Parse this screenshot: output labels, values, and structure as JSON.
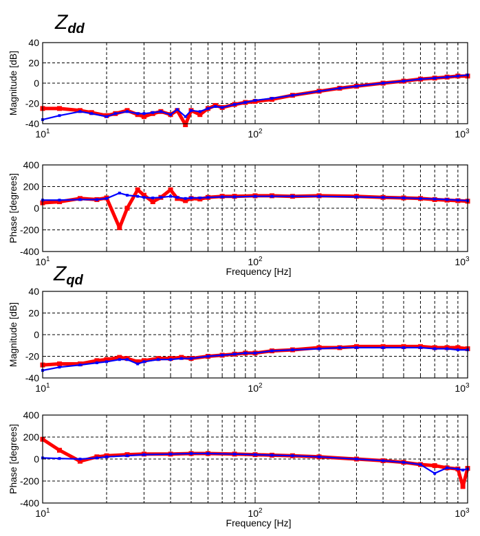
{
  "figure": {
    "title_dd": {
      "main": "Z",
      "sub": "dd"
    },
    "title_qd": {
      "main": "Z",
      "sub": "qd"
    }
  },
  "colors": {
    "series_red": "#ff0000",
    "series_blue": "#0000ff",
    "grid": "#000000",
    "axes_bg": "#ffffff"
  },
  "chart_data": [
    {
      "type": "line",
      "title": "",
      "xlabel": "",
      "ylabel": "Magnitude [dB]",
      "xscale": "log",
      "xlim": [
        10,
        1000
      ],
      "ylim": [
        -40,
        40
      ],
      "yticks": [
        -40,
        -20,
        0,
        20,
        40
      ],
      "xticks": [
        {
          "base": "10",
          "exp": "1"
        },
        {
          "base": "10",
          "exp": "2"
        },
        {
          "base": "10",
          "exp": "3"
        }
      ],
      "grid": true,
      "series": [
        {
          "color": "#ff0000",
          "x": [
            10,
            12,
            15,
            17,
            20,
            22,
            25,
            28,
            30,
            33,
            36,
            40,
            43,
            47,
            50,
            55,
            60,
            65,
            70,
            80,
            90,
            100,
            120,
            150,
            200,
            250,
            300,
            400,
            500,
            600,
            700,
            800,
            900,
            1000
          ],
          "y": [
            -25,
            -25,
            -27,
            -29,
            -32,
            -30,
            -27,
            -31,
            -33,
            -30,
            -28,
            -31,
            -27,
            -41,
            -27,
            -31,
            -25,
            -22,
            -24,
            -21,
            -19,
            -18,
            -16,
            -12,
            -8,
            -5,
            -3,
            0,
            2,
            4,
            5,
            6,
            7,
            7
          ]
        },
        {
          "color": "#0000ff",
          "x": [
            10,
            12,
            15,
            17,
            20,
            22,
            25,
            28,
            30,
            33,
            36,
            40,
            43,
            47,
            50,
            55,
            60,
            65,
            70,
            80,
            90,
            100,
            120,
            150,
            200,
            250,
            300,
            400,
            500,
            600,
            700,
            800,
            900,
            1000
          ],
          "y": [
            -36,
            -32,
            -28,
            -30,
            -33,
            -30,
            -28,
            -30,
            -30,
            -29,
            -28,
            -31,
            -26,
            -33,
            -27,
            -28,
            -25,
            -23,
            -24,
            -21,
            -19,
            -17,
            -15,
            -12,
            -8,
            -5,
            -3,
            0,
            2,
            4,
            5,
            6,
            7,
            8
          ]
        }
      ]
    },
    {
      "type": "line",
      "title": "",
      "xlabel": "Frequency [Hz]",
      "ylabel": "Phase [degrees]",
      "xscale": "log",
      "xlim": [
        10,
        1000
      ],
      "ylim": [
        -400,
        400
      ],
      "yticks": [
        -400,
        -200,
        0,
        200,
        400
      ],
      "xticks": [
        {
          "base": "10",
          "exp": "1"
        },
        {
          "base": "10",
          "exp": "2"
        },
        {
          "base": "10",
          "exp": "3"
        }
      ],
      "grid": true,
      "series": [
        {
          "color": "#ff0000",
          "x": [
            10,
            12,
            15,
            18,
            20,
            23,
            25,
            28,
            30,
            33,
            36,
            40,
            43,
            47,
            50,
            55,
            60,
            70,
            80,
            100,
            120,
            150,
            200,
            300,
            400,
            500,
            600,
            700,
            800,
            900,
            1000
          ],
          "y": [
            50,
            60,
            90,
            80,
            95,
            -180,
            0,
            170,
            120,
            60,
            100,
            170,
            90,
            70,
            90,
            85,
            100,
            110,
            110,
            115,
            115,
            110,
            115,
            110,
            100,
            95,
            90,
            80,
            75,
            70,
            65
          ]
        },
        {
          "color": "#0000ff",
          "x": [
            10,
            12,
            15,
            18,
            20,
            23,
            25,
            28,
            30,
            33,
            36,
            40,
            43,
            47,
            50,
            55,
            60,
            70,
            80,
            100,
            120,
            150,
            200,
            300,
            400,
            500,
            600,
            700,
            800,
            900,
            1000
          ],
          "y": [
            75,
            75,
            80,
            80,
            90,
            140,
            120,
            110,
            100,
            95,
            100,
            110,
            100,
            90,
            95,
            95,
            100,
            105,
            105,
            110,
            110,
            110,
            110,
            105,
            100,
            95,
            90,
            85,
            80,
            75,
            70
          ]
        }
      ]
    },
    {
      "type": "line",
      "title": "",
      "xlabel": "",
      "ylabel": "Magnitude [dB]",
      "xscale": "log",
      "xlim": [
        10,
        1000
      ],
      "ylim": [
        -40,
        40
      ],
      "yticks": [
        -40,
        -20,
        0,
        20,
        40
      ],
      "xticks": [
        {
          "base": "10",
          "exp": "1"
        },
        {
          "base": "10",
          "exp": "2"
        },
        {
          "base": "10",
          "exp": "3"
        }
      ],
      "grid": true,
      "series": [
        {
          "color": "#ff0000",
          "x": [
            10,
            12,
            15,
            18,
            20,
            23,
            25,
            28,
            30,
            35,
            40,
            45,
            50,
            60,
            70,
            80,
            90,
            100,
            120,
            150,
            200,
            250,
            300,
            400,
            500,
            600,
            700,
            800,
            900,
            1000
          ],
          "y": [
            -28,
            -27,
            -27,
            -24,
            -23,
            -21,
            -22,
            -25,
            -24,
            -22,
            -22,
            -21,
            -22,
            -20,
            -19,
            -18,
            -17,
            -17,
            -15,
            -14,
            -12,
            -12,
            -11,
            -11,
            -11,
            -11,
            -12,
            -12,
            -12,
            -13
          ]
        },
        {
          "color": "#0000ff",
          "x": [
            10,
            12,
            15,
            18,
            20,
            23,
            25,
            28,
            30,
            35,
            40,
            45,
            50,
            60,
            70,
            80,
            90,
            100,
            120,
            150,
            200,
            250,
            300,
            400,
            500,
            600,
            700,
            800,
            900,
            1000
          ],
          "y": [
            -33,
            -30,
            -28,
            -26,
            -25,
            -23,
            -23,
            -27,
            -25,
            -23,
            -23,
            -22,
            -22,
            -20,
            -19,
            -18,
            -17,
            -17,
            -15,
            -14,
            -13,
            -12,
            -12,
            -12,
            -12,
            -12,
            -13,
            -13,
            -14,
            -14
          ]
        }
      ]
    },
    {
      "type": "line",
      "title": "",
      "xlabel": "Frequency [Hz]",
      "ylabel": "Phase [degrees]",
      "xscale": "log",
      "xlim": [
        10,
        1000
      ],
      "ylim": [
        -400,
        400
      ],
      "yticks": [
        -400,
        -200,
        0,
        200,
        400
      ],
      "xticks": [
        {
          "base": "10",
          "exp": "1"
        },
        {
          "base": "10",
          "exp": "2"
        },
        {
          "base": "10",
          "exp": "3"
        }
      ],
      "grid": true,
      "series": [
        {
          "color": "#ff0000",
          "x": [
            10,
            12,
            15,
            18,
            20,
            25,
            30,
            40,
            50,
            60,
            80,
            100,
            120,
            150,
            200,
            300,
            400,
            500,
            600,
            700,
            800,
            900,
            950,
            1000
          ],
          "y": [
            180,
            80,
            -20,
            20,
            30,
            40,
            45,
            45,
            50,
            50,
            45,
            40,
            35,
            30,
            20,
            0,
            -15,
            -30,
            -50,
            -60,
            -80,
            -90,
            -250,
            -85
          ]
        },
        {
          "color": "#0000ff",
          "x": [
            10,
            12,
            15,
            18,
            20,
            25,
            30,
            40,
            50,
            60,
            80,
            100,
            120,
            150,
            200,
            300,
            400,
            500,
            600,
            700,
            800,
            900,
            950,
            1000
          ],
          "y": [
            10,
            5,
            0,
            10,
            20,
            30,
            40,
            45,
            50,
            50,
            45,
            40,
            35,
            30,
            20,
            0,
            -15,
            -30,
            -50,
            -130,
            -80,
            -90,
            -100,
            -90
          ]
        }
      ]
    }
  ]
}
